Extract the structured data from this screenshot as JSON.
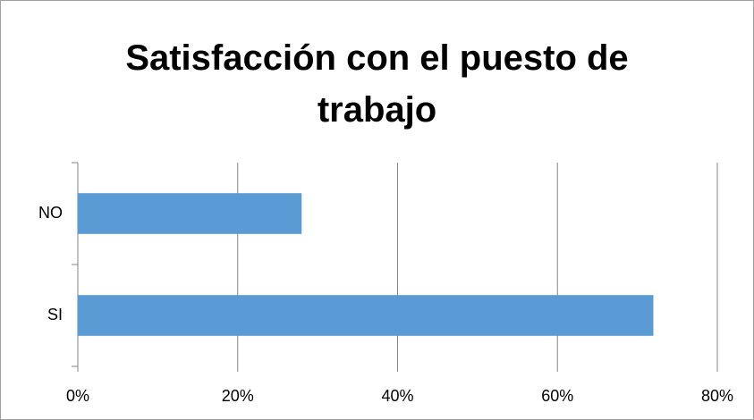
{
  "chart_data": {
    "type": "bar",
    "orientation": "horizontal",
    "title": "Satisfacción con el puesto de trabajo",
    "categories": [
      "SI",
      "NO"
    ],
    "values": [
      72,
      28
    ],
    "color": "#5b9bd5",
    "xlim": [
      0,
      80
    ],
    "xticks": [
      {
        "value": 0,
        "label": "0%"
      },
      {
        "value": 20,
        "label": "20%"
      },
      {
        "value": 40,
        "label": "40%"
      },
      {
        "value": 60,
        "label": "60%"
      },
      {
        "value": 80,
        "label": "80%"
      }
    ],
    "grid": true
  }
}
